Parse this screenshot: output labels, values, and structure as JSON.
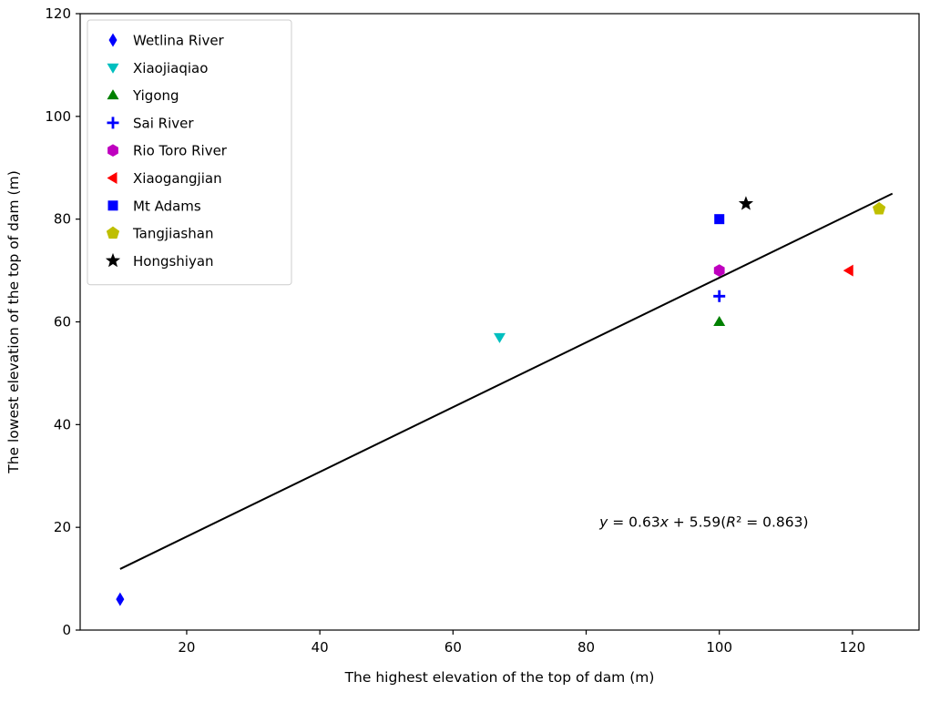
{
  "chart_data": {
    "type": "scatter",
    "title": "",
    "xlabel": "The highest elevation of the top of dam (m)",
    "ylabel": "The lowest elevation of the top of dam (m)",
    "xlim": [
      4,
      130
    ],
    "ylim": [
      0,
      120
    ],
    "xticks": [
      20,
      40,
      60,
      80,
      100,
      120
    ],
    "yticks": [
      0,
      20,
      40,
      60,
      80,
      100,
      120
    ],
    "grid": false,
    "legend_position": "upper left",
    "series": [
      {
        "name": "Wetlina River",
        "marker": "thin-diamond",
        "color": "#0000FF",
        "x": 10,
        "y": 6
      },
      {
        "name": "Xiaojiaqiao",
        "marker": "triangle-down",
        "color": "#00BFBF",
        "x": 67,
        "y": 57
      },
      {
        "name": "Yigong",
        "marker": "triangle-up",
        "color": "#008000",
        "x": 100,
        "y": 60
      },
      {
        "name": "Sai River",
        "marker": "plus",
        "color": "#0000FF",
        "x": 100,
        "y": 65
      },
      {
        "name": "Rio Toro River",
        "marker": "hexagon",
        "color": "#BF00BF",
        "x": 100,
        "y": 70
      },
      {
        "name": "Xiaogangjian",
        "marker": "triangle-left",
        "color": "#FF0000",
        "x": 119.5,
        "y": 70
      },
      {
        "name": "Mt Adams",
        "marker": "square",
        "color": "#0000FF",
        "x": 100,
        "y": 80
      },
      {
        "name": "Tangjiashan",
        "marker": "pentagon",
        "color": "#BFBF00",
        "x": 124,
        "y": 82
      },
      {
        "name": "Hongshiyan",
        "marker": "star",
        "color": "#000000",
        "x": 104,
        "y": 83
      }
    ],
    "fit_line": {
      "slope": 0.63,
      "intercept": 5.59,
      "r_squared": 0.863,
      "x_start": 10,
      "x_end": 126,
      "color": "#000000",
      "annotation_text": "y = 0.63x + 5.59(R² = 0.863)",
      "annotation_x": 82,
      "annotation_y": 21
    },
    "colors": {
      "axis": "#000000",
      "background": "#ffffff",
      "legend_border": "#cccccc"
    }
  }
}
